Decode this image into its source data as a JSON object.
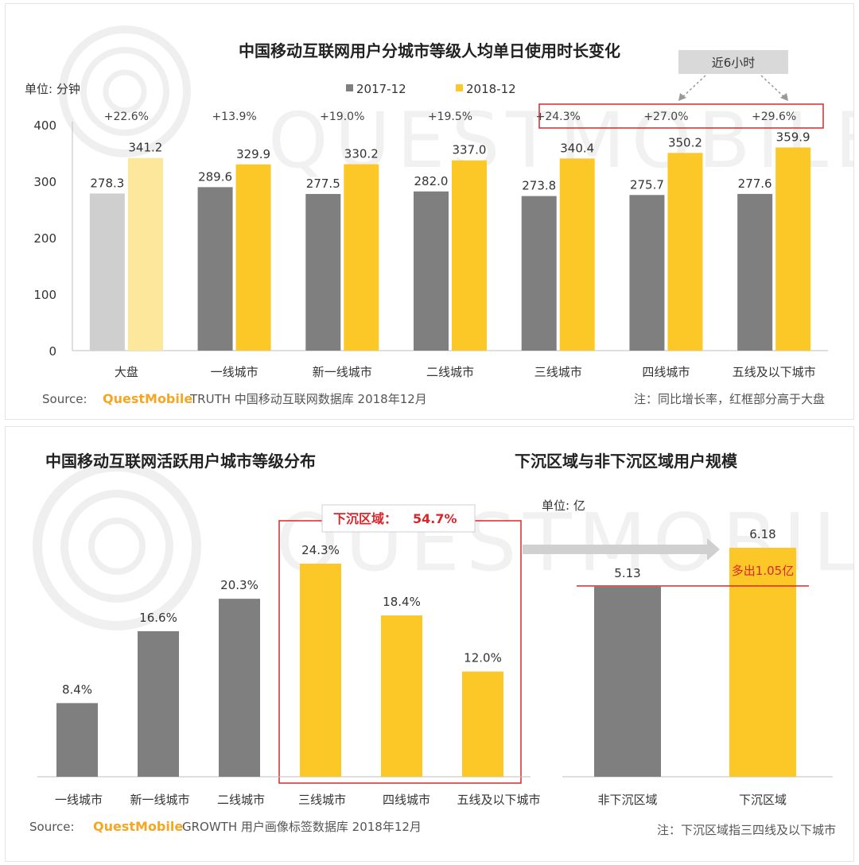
{
  "top": {
    "title": "中国移动互联网用户分城市等级人均单日使用时长变化",
    "unit": "单位: 分钟",
    "legend": [
      "2017-12",
      "2018-12"
    ],
    "callout": "近6小时",
    "source_prefix": "Source:",
    "source_brand": "QuestMobile",
    "source_rest": "TRUTH 中国移动互联网数据库 2018年12月",
    "note": "注：同比增长率，红框部分高于大盘",
    "watermark": "QUESTMOBILE"
  },
  "bottom_left": {
    "title": "中国移动互联网活跃用户城市等级分布",
    "highlight_label": "下沉区域：",
    "highlight_value": "54.7%",
    "source_prefix": "Source:",
    "source_brand": "QuestMobile",
    "source_rest": "GROWTH 用户画像标签数据库 2018年12月"
  },
  "bottom_right": {
    "title": "下沉区域与非下沉区域用户规模",
    "unit": "单位: 亿",
    "diff_label": "多出1.05亿",
    "note": "注：下沉区域指三四线及以下城市",
    "watermark": "QUESTMOBILE"
  },
  "colors": {
    "gray": "#7f7f7f",
    "yellow": "#fcc828",
    "light_gray": "#cfcfcf",
    "light_yellow": "#fde79a",
    "red": "#d9262b",
    "brand": "#f5a623"
  },
  "chart_data": [
    {
      "type": "bar",
      "title": "中国移动互联网用户分城市等级人均单日使用时长变化",
      "ylabel": "单位: 分钟",
      "ylim": [
        0,
        400
      ],
      "yticks": [
        0,
        100,
        200,
        300,
        400
      ],
      "categories": [
        "大盘",
        "一线城市",
        "新一线城市",
        "二线城市",
        "三线城市",
        "四线城市",
        "五线及以下城市"
      ],
      "series": [
        {
          "name": "2017-12",
          "values": [
            278.3,
            289.6,
            277.5,
            282.0,
            273.8,
            275.7,
            277.6
          ]
        },
        {
          "name": "2018-12",
          "values": [
            341.2,
            329.9,
            330.2,
            337.0,
            340.4,
            350.2,
            359.9
          ]
        }
      ],
      "growth": [
        "+22.6%",
        "+13.9%",
        "+19.0%",
        "+19.5%",
        "+24.3%",
        "+27.0%",
        "+29.6%"
      ],
      "legend_position": "top-center"
    },
    {
      "type": "bar",
      "title": "中国移动互联网活跃用户城市等级分布",
      "categories": [
        "一线城市",
        "新一线城市",
        "二线城市",
        "三线城市",
        "四线城市",
        "五线及以下城市"
      ],
      "values": [
        8.4,
        16.6,
        20.3,
        24.3,
        18.4,
        12.0
      ],
      "labels": [
        "8.4%",
        "16.6%",
        "20.3%",
        "24.3%",
        "18.4%",
        "12.0%"
      ]
    },
    {
      "type": "bar",
      "title": "下沉区域与非下沉区域用户规模",
      "ylabel": "单位: 亿",
      "categories": [
        "非下沉区域",
        "下沉区域"
      ],
      "values": [
        5.13,
        6.18
      ],
      "labels": [
        "5.13",
        "6.18"
      ]
    }
  ]
}
